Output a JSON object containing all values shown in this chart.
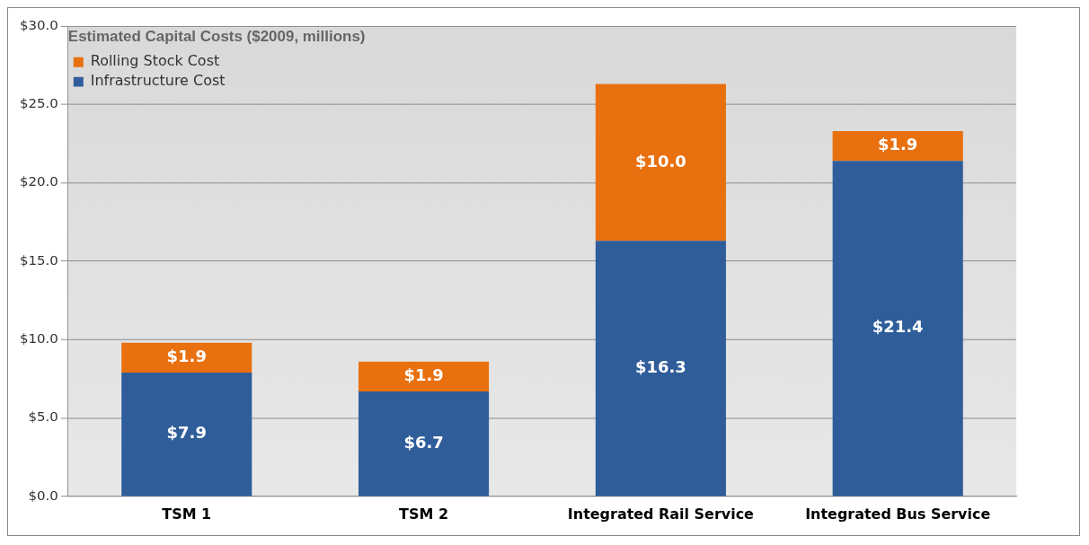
{
  "chart_data": {
    "type": "bar",
    "stacked": true,
    "legend_title": "Estimated Capital Costs ($2009, millions)",
    "categories": [
      "TSM 1",
      "TSM 2",
      "Integrated Rail Service",
      "Integrated Bus Service"
    ],
    "series": [
      {
        "name": "Infrastructure Cost",
        "color": "#2e5d9a",
        "values": [
          7.9,
          6.7,
          16.3,
          21.4
        ],
        "value_labels": [
          "$7.9",
          "$6.7",
          "$16.3",
          "$21.4"
        ]
      },
      {
        "name": "Rolling Stock Cost",
        "color": "#e8700f",
        "values": [
          1.9,
          1.9,
          10.0,
          1.9
        ],
        "value_labels": [
          "$1.9",
          "$1.9",
          "$10.0",
          "$1.9"
        ]
      }
    ],
    "ylim": [
      0,
      30
    ],
    "yticks": [
      {
        "value": 0,
        "label": "$0.0"
      },
      {
        "value": 5,
        "label": "$5.0"
      },
      {
        "value": 10,
        "label": "$10.0"
      },
      {
        "value": 15,
        "label": "$15.0"
      },
      {
        "value": 20,
        "label": "$20.0"
      },
      {
        "value": 25,
        "label": "$25.0"
      },
      {
        "value": 30,
        "label": "$30.0"
      }
    ],
    "grid": "y",
    "legend": "top left"
  }
}
